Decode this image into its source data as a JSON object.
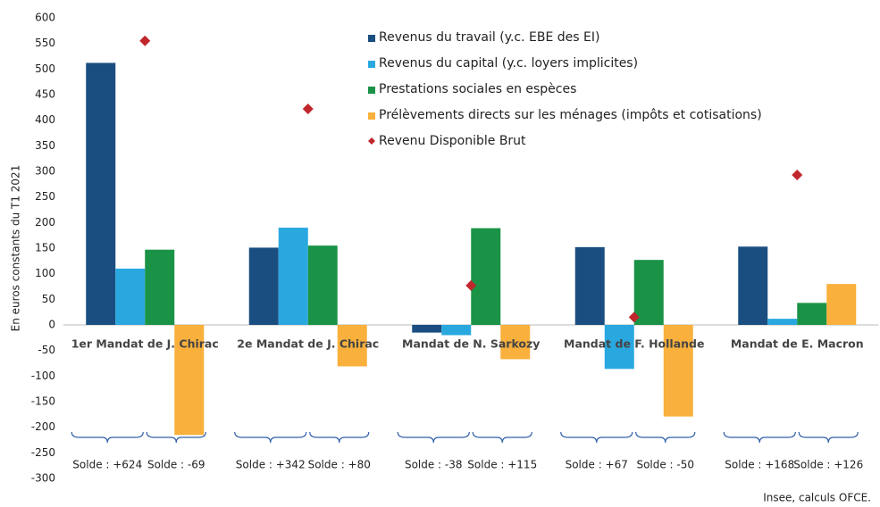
{
  "chart_data": {
    "type": "bar",
    "y_label": "En euros constants du T1 2021",
    "source": "Insee, calculs OFCE.",
    "categories": [
      "1er Mandat de J. Chirac",
      "2e Mandat de J. Chirac",
      "Mandat de N. Sarkozy",
      "Mandat de F. Hollande",
      "Mandat de E. Macron"
    ],
    "series": [
      {
        "name": "Revenus du travail (y.c. EBE des EI)",
        "color": "#1a4e80",
        "values": [
          512,
          151,
          -15,
          152,
          153
        ]
      },
      {
        "name": "Revenus du capital (y.c. loyers implicites)",
        "color": "#29a8e0",
        "values": [
          110,
          190,
          -20,
          -86,
          12
        ]
      },
      {
        "name": "Prestations sociales en espèces",
        "color": "#1a9347",
        "values": [
          147,
          155,
          189,
          127,
          43
        ]
      },
      {
        "name": "Prélèvements directs sur les ménages (impôts et cotisations)",
        "color": "#f9b03c",
        "values": [
          -215,
          -81,
          -67,
          -179,
          80
        ]
      },
      {
        "name": "Revenu Disponible Brut",
        "color": "#c0272d",
        "marker": "diamond",
        "values": [
          555,
          422,
          77,
          15,
          293
        ]
      }
    ],
    "solde_labels": [
      [
        "Solde : +624",
        "Solde : -69"
      ],
      [
        "Solde : +342",
        "Solde : +80"
      ],
      [
        "Solde : -38",
        "Solde : +115"
      ],
      [
        "Solde : +67",
        "Solde : -50"
      ],
      [
        "Solde : +168",
        "Solde : +126"
      ]
    ],
    "ylim": [
      -300,
      600
    ],
    "yticks": [
      -300,
      -250,
      -200,
      -150,
      -100,
      -50,
      0,
      50,
      100,
      150,
      200,
      250,
      300,
      350,
      400,
      450,
      500,
      550,
      600
    ],
    "grid": false
  }
}
